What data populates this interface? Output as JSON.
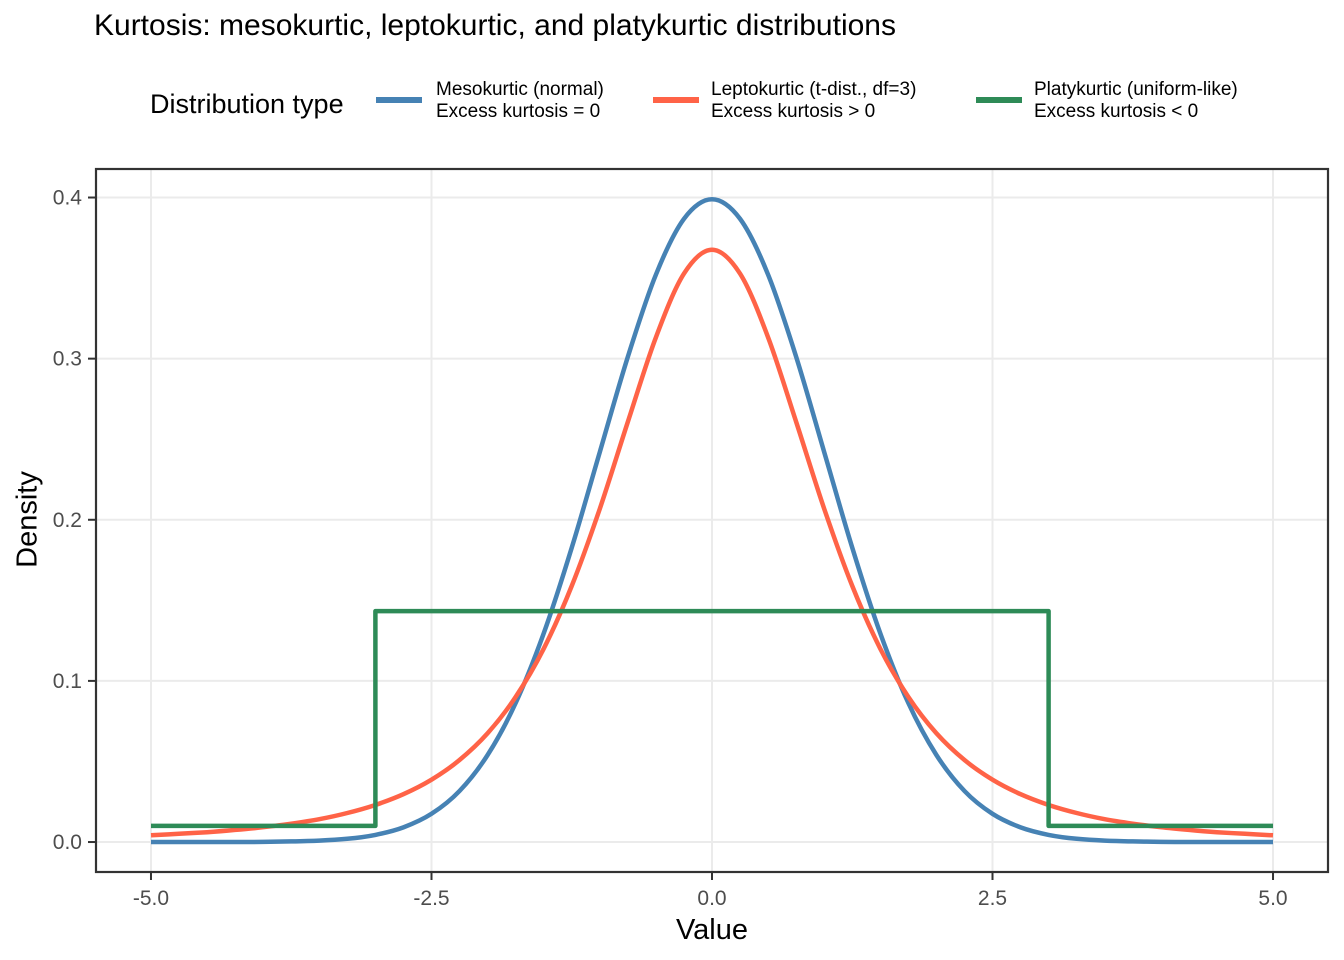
{
  "title": "Kurtosis: mesokurtic, leptokurtic, and platykurtic distributions",
  "legend": {
    "title": "Distribution type",
    "entries": [
      {
        "label_line1": "Mesokurtic (normal)",
        "label_line2": "Excess kurtosis = 0",
        "color": "#4682B4"
      },
      {
        "label_line1": "Leptokurtic (t-dist., df=3)",
        "label_line2": "Excess kurtosis > 0",
        "color": "#FF6347"
      },
      {
        "label_line1": "Platykurtic (uniform-like)",
        "label_line2": "Excess kurtosis < 0",
        "color": "#2E8B57"
      }
    ]
  },
  "chart_data": {
    "type": "line",
    "title": "Kurtosis: mesokurtic, leptokurtic, and platykurtic distributions",
    "xlabel": "Value",
    "ylabel": "Density",
    "grid": true,
    "legend_position": "top",
    "x_axis": {
      "ticks": [
        -5,
        -2.5,
        0,
        2.5,
        5
      ],
      "tick_labels": [
        "-5.0",
        "-2.5",
        "0.0",
        "2.5",
        "5.0"
      ],
      "range": [
        -5.49,
        5.49
      ]
    },
    "y_axis": {
      "ticks": [
        0,
        0.1,
        0.2,
        0.3,
        0.4
      ],
      "tick_labels": [
        "0.0",
        "0.1",
        "0.2",
        "0.3",
        "0.4"
      ],
      "range": [
        -0.0186,
        0.4177
      ]
    },
    "style": {
      "grid_color": "#EBEBEB",
      "border_color": "#333333",
      "tick_color": "#333333",
      "tick_label_color": "#4D4D4D"
    },
    "series": [
      {
        "name": "Mesokurtic (normal), Excess kurtosis = 0",
        "color": "#4682B4",
        "smooth": true,
        "x": [
          -5,
          -4.75,
          -4.5,
          -4.25,
          -4,
          -3.75,
          -3.5,
          -3.25,
          -3,
          -2.75,
          -2.5,
          -2.25,
          -2,
          -1.75,
          -1.5,
          -1.25,
          -1,
          -0.75,
          -0.5,
          -0.25,
          0,
          0.25,
          0.5,
          0.75,
          1,
          1.25,
          1.5,
          1.75,
          2,
          2.25,
          2.5,
          2.75,
          3,
          3.25,
          3.5,
          3.75,
          4,
          4.25,
          4.5,
          4.75,
          5
        ],
        "y": [
          0,
          0,
          0,
          0,
          0.0001,
          0.0004,
          0.0009,
          0.002,
          0.0044,
          0.0091,
          0.0175,
          0.0317,
          0.054,
          0.0862,
          0.1295,
          0.1826,
          0.242,
          0.3011,
          0.3521,
          0.3867,
          0.3989,
          0.3867,
          0.3521,
          0.3011,
          0.242,
          0.1826,
          0.1295,
          0.0862,
          0.054,
          0.0317,
          0.0175,
          0.0091,
          0.0044,
          0.002,
          0.0009,
          0.0004,
          0.0001,
          0,
          0,
          0,
          0
        ]
      },
      {
        "name": "Leptokurtic (t-dist., df=3), Excess kurtosis > 0",
        "color": "#FF6347",
        "smooth": true,
        "x": [
          -5,
          -4.75,
          -4.5,
          -4.25,
          -4,
          -3.75,
          -3.5,
          -3.25,
          -3,
          -2.75,
          -2.5,
          -2.25,
          -2,
          -1.75,
          -1.5,
          -1.25,
          -1,
          -0.75,
          -0.5,
          -0.25,
          0,
          0.25,
          0.5,
          0.75,
          1,
          1.25,
          1.5,
          1.75,
          2,
          2.25,
          2.5,
          2.75,
          3,
          3.25,
          3.5,
          3.75,
          4,
          4.25,
          4.5,
          4.75,
          5
        ],
        "y": [
          0.0042,
          0.0051,
          0.0061,
          0.0075,
          0.0092,
          0.0114,
          0.0142,
          0.018,
          0.023,
          0.0297,
          0.0387,
          0.0509,
          0.0675,
          0.09,
          0.12,
          0.1589,
          0.2068,
          0.2607,
          0.3132,
          0.3527,
          0.3676,
          0.3527,
          0.3132,
          0.2607,
          0.2068,
          0.1589,
          0.12,
          0.09,
          0.0675,
          0.0509,
          0.0387,
          0.0297,
          0.023,
          0.018,
          0.0142,
          0.0114,
          0.0092,
          0.0075,
          0.0061,
          0.0051,
          0.0042
        ]
      },
      {
        "name": "Platykurtic (uniform-like), Excess kurtosis < 0",
        "color": "#2E8B57",
        "smooth": false,
        "x": [
          -5,
          -3,
          -3,
          3,
          3,
          5
        ],
        "y": [
          0.01,
          0.01,
          0.1433,
          0.1433,
          0.01,
          0.01
        ]
      }
    ]
  }
}
